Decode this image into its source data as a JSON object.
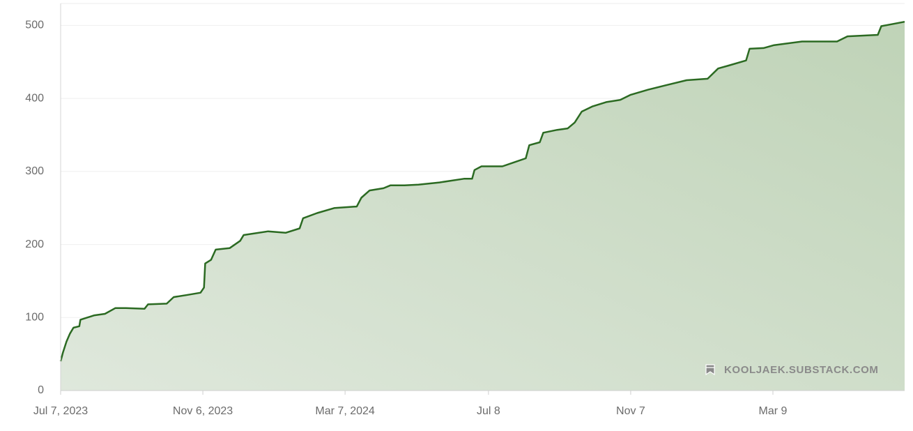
{
  "chart_data": {
    "type": "area",
    "x": [
      "2023-07-07",
      "2023-07-09",
      "2023-07-12",
      "2023-07-15",
      "2023-07-18",
      "2023-07-23",
      "2023-07-24",
      "2023-07-28",
      "2023-08-05",
      "2023-08-14",
      "2023-08-23",
      "2023-09-01",
      "2023-09-17",
      "2023-09-20",
      "2023-10-06",
      "2023-10-12",
      "2023-10-24",
      "2023-11-04",
      "2023-11-07",
      "2023-11-08",
      "2023-11-13",
      "2023-11-17",
      "2023-11-29",
      "2023-12-08",
      "2023-12-11",
      "2024-01-01",
      "2024-01-16",
      "2024-01-28",
      "2024-01-31",
      "2024-02-12",
      "2024-02-27",
      "2024-03-17",
      "2024-03-21",
      "2024-03-28",
      "2024-04-09",
      "2024-04-15",
      "2024-04-27",
      "2024-05-09",
      "2024-05-27",
      "2024-06-17",
      "2024-06-24",
      "2024-06-26",
      "2024-07-02",
      "2024-07-20",
      "2024-07-29",
      "2024-08-09",
      "2024-08-12",
      "2024-08-21",
      "2024-08-24",
      "2024-09-05",
      "2024-09-14",
      "2024-09-20",
      "2024-09-26",
      "2024-10-05",
      "2024-10-17",
      "2024-10-29",
      "2024-11-07",
      "2024-11-22",
      "2024-12-07",
      "2024-12-25",
      "2025-01-12",
      "2025-01-21",
      "2025-01-30",
      "2025-02-14",
      "2025-02-17",
      "2025-03-01",
      "2025-03-10",
      "2025-04-03",
      "2025-05-03",
      "2025-05-12",
      "2025-06-07",
      "2025-06-10",
      "2025-06-30"
    ],
    "series": [
      {
        "color": "#2b6a22",
        "values": [
          40,
          52,
          67,
          78,
          86,
          88,
          97,
          99,
          103,
          105,
          113,
          113,
          112,
          118,
          119,
          128,
          131,
          134,
          141,
          174,
          179,
          193,
          195,
          205,
          213,
          218,
          216,
          222,
          236,
          243,
          250,
          252,
          264,
          274,
          277,
          281,
          281,
          282,
          285,
          290,
          290,
          302,
          307,
          307,
          312,
          318,
          336,
          340,
          353,
          357,
          359,
          367,
          382,
          389,
          395,
          398,
          405,
          412,
          418,
          425,
          427,
          441,
          445,
          452,
          468,
          469,
          473,
          478,
          478,
          485,
          487,
          499,
          505
        ]
      }
    ],
    "xlim": [
      "2023-07-07",
      "2025-06-30"
    ],
    "xticks": [
      {
        "value": "2023-07-07",
        "label": "Jul 7, 2023"
      },
      {
        "value": "2023-11-06",
        "label": "Nov 6, 2023"
      },
      {
        "value": "2024-03-07",
        "label": "Mar 7, 2024"
      },
      {
        "value": "2024-07-08",
        "label": "Jul 8"
      },
      {
        "value": "2024-11-07",
        "label": "Nov 7"
      },
      {
        "value": "2025-03-09",
        "label": "Mar 9"
      }
    ],
    "ylim": [
      0,
      530
    ],
    "yticks": [
      0,
      100,
      200,
      300,
      400,
      500
    ],
    "grid": true,
    "watermark": "KOOLJAEK.SUBSTACK.COM"
  }
}
